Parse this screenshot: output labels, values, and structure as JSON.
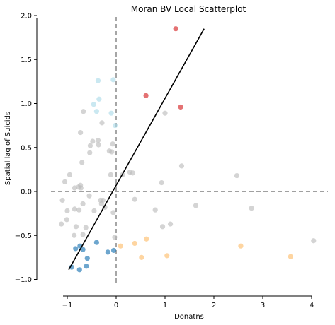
{
  "chart_data": {
    "type": "scatter",
    "title": "Moran BV Local Scatterplot",
    "xlabel": "Donatns",
    "ylabel": "Spatial lag of Suicids",
    "xlim": [
      -1.25,
      4.1
    ],
    "ylim": [
      -1.05,
      2.0
    ],
    "xticks": [
      -1,
      0,
      1,
      2,
      3,
      4
    ],
    "xtick_labels": [
      "−1",
      "0",
      "1",
      "2",
      "3",
      "4"
    ],
    "yticks": [
      -1.0,
      -0.5,
      0.0,
      0.5,
      1.0,
      1.5,
      2.0
    ],
    "ytick_labels": [
      "−1.0",
      "−0.5",
      "0.0",
      "0.5",
      "1.0",
      "1.5",
      "2.0"
    ],
    "grid": false,
    "reference_lines": {
      "x": 0,
      "y": 0,
      "style": "dashed",
      "color": "#808080"
    },
    "regression_line": {
      "x": [
        -0.97,
        1.8
      ],
      "y": [
        -0.89,
        1.85
      ],
      "color": "#000000"
    },
    "series": [
      {
        "quadrant": "high-high",
        "color": "#d62728",
        "points": [
          [
            1.22,
            1.85
          ],
          [
            0.61,
            1.09
          ],
          [
            1.32,
            0.96
          ]
        ]
      },
      {
        "quadrant": "low-high",
        "color": "#aedbe9",
        "points": [
          [
            -0.37,
            1.26
          ],
          [
            -0.06,
            1.27
          ],
          [
            -0.35,
            1.05
          ],
          [
            -0.46,
            0.99
          ],
          [
            -0.4,
            0.91
          ],
          [
            -0.1,
            0.89
          ],
          [
            -0.02,
            0.75
          ]
        ]
      },
      {
        "quadrant": "low-low",
        "color": "#1f77b4",
        "points": [
          [
            -0.91,
            -0.86
          ],
          [
            -0.83,
            -0.65
          ],
          [
            -0.74,
            -0.62
          ],
          [
            -0.68,
            -0.66
          ],
          [
            -0.4,
            -0.58
          ],
          [
            -0.59,
            -0.76
          ],
          [
            -0.61,
            -0.85
          ],
          [
            -0.75,
            -0.89
          ],
          [
            -0.17,
            -0.69
          ],
          [
            -0.05,
            -0.67
          ]
        ]
      },
      {
        "quadrant": "high-low",
        "color": "#fdbf6f",
        "points": [
          [
            0.09,
            -0.62
          ],
          [
            0.38,
            -0.59
          ],
          [
            0.62,
            -0.54
          ],
          [
            0.52,
            -0.75
          ],
          [
            1.04,
            -0.73
          ],
          [
            2.55,
            -0.62
          ],
          [
            3.57,
            -0.74
          ]
        ]
      },
      {
        "quadrant": "not significant",
        "color": "#bdbdbd",
        "points": [
          [
            -0.67,
            0.91
          ],
          [
            -0.73,
            0.67
          ],
          [
            -0.48,
            0.57
          ],
          [
            -0.37,
            0.58
          ],
          [
            -0.53,
            0.52
          ],
          [
            -0.29,
            0.78
          ],
          [
            -0.54,
            0.44
          ],
          [
            -0.14,
            0.46
          ],
          [
            -0.09,
            0.45
          ],
          [
            -0.07,
            0.54
          ],
          [
            -0.7,
            0.33
          ],
          [
            -0.36,
            0.53
          ],
          [
            1.0,
            0.89
          ],
          [
            1.34,
            0.29
          ],
          [
            2.47,
            0.18
          ],
          [
            0.93,
            0.1
          ],
          [
            -1.05,
            0.11
          ],
          [
            -0.95,
            0.19
          ],
          [
            -0.85,
            0.04
          ],
          [
            -0.77,
            0.05
          ],
          [
            -0.72,
            0.04
          ],
          [
            -0.73,
            0.07
          ],
          [
            -0.11,
            0.19
          ],
          [
            0.13,
            0.19
          ],
          [
            0.28,
            0.22
          ],
          [
            0.34,
            0.21
          ],
          [
            -1.1,
            -0.1
          ],
          [
            -1.0,
            -0.22
          ],
          [
            -0.85,
            -0.2
          ],
          [
            -0.76,
            -0.21
          ],
          [
            -0.68,
            -0.14
          ],
          [
            -0.55,
            -0.05
          ],
          [
            -0.45,
            -0.22
          ],
          [
            -0.3,
            -0.14
          ],
          [
            -0.32,
            -0.1
          ],
          [
            -0.27,
            -0.1
          ],
          [
            -0.23,
            -0.18
          ],
          [
            -0.06,
            -0.24
          ],
          [
            0.38,
            -0.09
          ],
          [
            0.8,
            -0.21
          ],
          [
            1.63,
            -0.16
          ],
          [
            2.77,
            -0.19
          ],
          [
            -1.12,
            -0.37
          ],
          [
            -1.01,
            -0.32
          ],
          [
            -0.82,
            -0.4
          ],
          [
            -0.62,
            -0.41
          ],
          [
            -0.86,
            -0.5
          ],
          [
            -0.68,
            -0.49
          ],
          [
            -0.03,
            -0.52
          ],
          [
            0.95,
            -0.4
          ],
          [
            1.11,
            -0.37
          ],
          [
            4.04,
            -0.56
          ]
        ]
      }
    ]
  }
}
